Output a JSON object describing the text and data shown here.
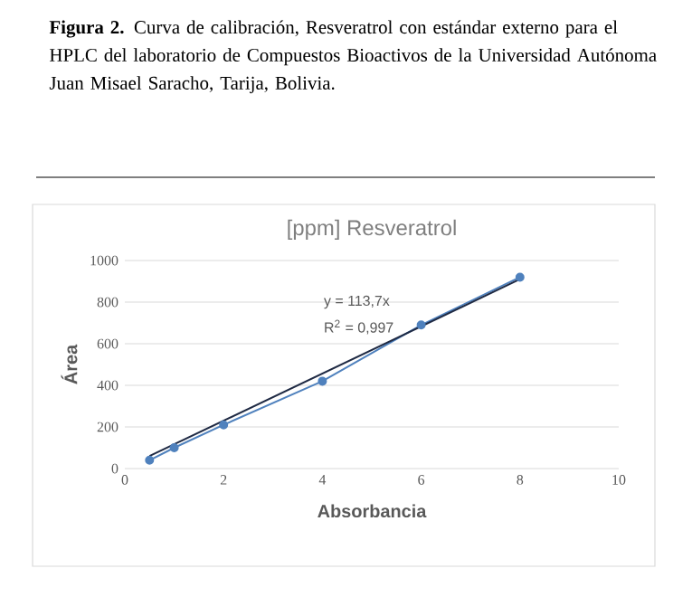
{
  "chart_data": {
    "type": "line",
    "title": "[ppm] Resveratrol",
    "xlabel": "Absorbancia",
    "ylabel": "Área",
    "annotations": [
      "**Figura 2.** Curva de calibración, Resveratrol con estándar externo para el HPLC del laboratorio de Compuestos Bioactivos de la Universidad Autónoma Juan Misael Saracho, Tarija, Bolivia.",
      "y = 113,7x",
      "R$^{2}$ = 0,997"
    ],
    "x": [
      0.5,
      1,
      2,
      4,
      6,
      8
    ],
    "series": [
      {
        "color": "#4f81bd",
        "marker": "circle",
        "values": [
          40,
          100,
          210,
          420,
          690,
          920
        ]
      },
      {
        "color": "#1f2a44",
        "marker": "none",
        "x": [
          0.5,
          8
        ],
        "values": [
          60,
          910
        ]
      }
    ],
    "xlim": [
      0,
      10
    ],
    "ylim": [
      0,
      1000
    ],
    "xticks": [
      0,
      2,
      4,
      6,
      8,
      10
    ],
    "yticks": [
      0,
      200,
      400,
      600,
      800,
      1000
    ],
    "grid": "y"
  }
}
